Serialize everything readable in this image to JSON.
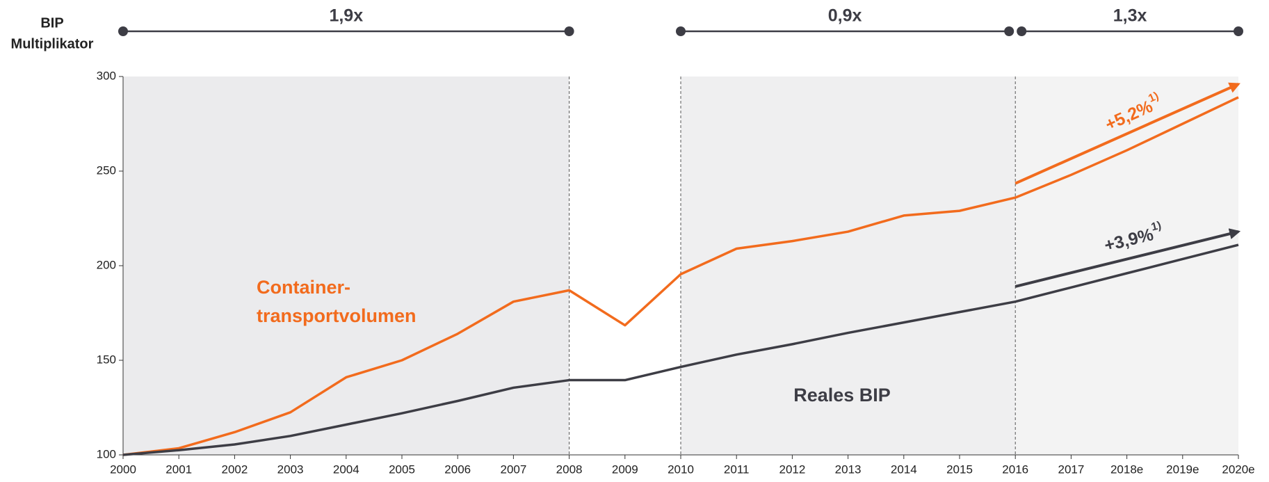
{
  "chart_data": {
    "type": "line",
    "y_axis_label": [
      "BIP",
      "Multiplikator"
    ],
    "categories": [
      "2000",
      "2001",
      "2002",
      "2003",
      "2004",
      "2005",
      "2006",
      "2007",
      "2008",
      "2009",
      "2010",
      "2011",
      "2012",
      "2013",
      "2014",
      "2015",
      "2016",
      "2017",
      "2018e",
      "2019e",
      "2020e"
    ],
    "series": [
      {
        "name": "Container-transportvolumen",
        "label_lines": [
          "Container-",
          "transportvolumen"
        ],
        "color": "#f26b1d",
        "values": [
          100,
          103.5,
          112,
          122.5,
          141,
          150,
          164,
          181,
          187,
          168.5,
          195.5,
          209,
          213,
          218,
          226.5,
          229,
          236,
          248,
          261,
          275,
          289
        ]
      },
      {
        "name": "Reales BIP",
        "label_lines": [
          "Reales BIP"
        ],
        "color": "#3d3d45",
        "values": [
          100,
          102.5,
          105.5,
          110,
          116,
          122,
          128.5,
          135.5,
          139.5,
          139.5,
          146.5,
          153,
          158.5,
          164.5,
          170,
          175.5,
          181,
          188.5,
          196,
          203.5,
          211
        ]
      }
    ],
    "ylim": [
      100,
      300
    ],
    "yticks": [
      100,
      150,
      200,
      250,
      300
    ],
    "periods": [
      {
        "label": "1,9x",
        "from": "2000",
        "to": "2008",
        "shade": "#ebebed"
      },
      {
        "label": "0,9x",
        "from": "2010",
        "to": "2016",
        "shade": "#efeff0"
      },
      {
        "label": "1,3x",
        "from": "2016",
        "to": "2020e",
        "shade": "#f3f3f3"
      }
    ],
    "trends": [
      {
        "label": "+5,2%",
        "note": "1)",
        "color": "#f26b1d",
        "from": "2016",
        "to": "2020e",
        "start": 243.5,
        "end": 296
      },
      {
        "label": "+3,9%",
        "note": "1)",
        "color": "#3d3d45",
        "from": "2016",
        "to": "2020e",
        "start": 189,
        "end": 218
      }
    ]
  }
}
